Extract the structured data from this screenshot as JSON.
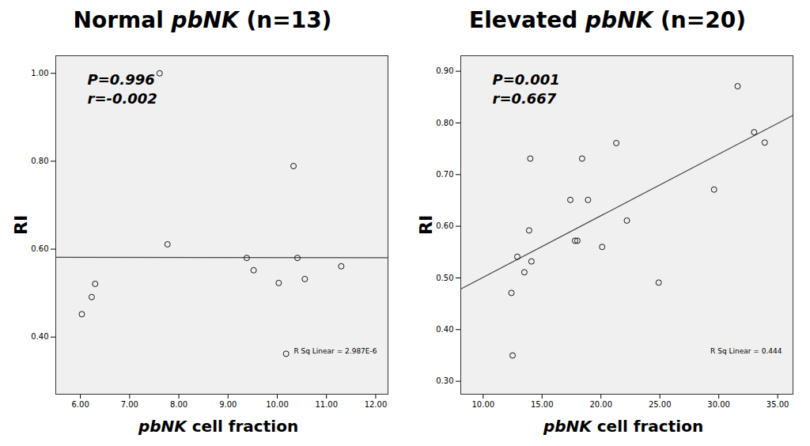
{
  "chart_data": [
    {
      "type": "scatter",
      "title": "Normal pbNK (n=13)",
      "xlabel": "pbNK cell fraction",
      "ylabel": "RI",
      "x": [
        6.03,
        6.23,
        6.3,
        7.61,
        7.77,
        9.38,
        9.52,
        10.33,
        10.41,
        10.03,
        10.18,
        10.56,
        11.3
      ],
      "values": [
        0.452,
        0.491,
        0.521,
        1.0,
        0.611,
        0.58,
        0.552,
        0.789,
        0.58,
        0.523,
        0.362,
        0.532,
        0.561
      ],
      "xlim": [
        5.5,
        12.25
      ],
      "ylim": [
        0.27,
        1.04
      ],
      "xticks": [
        {
          "value": 6,
          "label": "6.00"
        },
        {
          "value": 7,
          "label": "7.00"
        },
        {
          "value": 8,
          "label": "8.00"
        },
        {
          "value": 9,
          "label": "9.00"
        },
        {
          "value": 10,
          "label": "10.00"
        },
        {
          "value": 11,
          "label": "11.00"
        },
        {
          "value": 12,
          "label": "12.00"
        }
      ],
      "yticks": [
        {
          "value": 0.4,
          "label": "0.40"
        },
        {
          "value": 0.6,
          "label": "0.60"
        },
        {
          "value": 0.8,
          "label": "0.80"
        },
        {
          "value": 1.0,
          "label": "1.00"
        }
      ],
      "annotations": [
        "P=0.996",
        "r=-0.002",
        "R Sq Linear = 2.987E-6"
      ],
      "marker": "circle",
      "color": "#000000",
      "line_style": "solid",
      "grid": false
    },
    {
      "type": "scatter",
      "title": "Elevated pbNK (n=20)",
      "xlabel": "pbNK cell fraction",
      "ylabel": "RI",
      "x": [
        12.4,
        12.5,
        12.9,
        13.5,
        13.9,
        14.0,
        14.1,
        17.4,
        17.8,
        18.0,
        18.4,
        18.9,
        20.1,
        21.3,
        22.2,
        24.9,
        29.6,
        31.6,
        33.0,
        33.9
      ],
      "values": [
        0.471,
        0.35,
        0.541,
        0.511,
        0.592,
        0.731,
        0.532,
        0.651,
        0.572,
        0.572,
        0.731,
        0.651,
        0.56,
        0.761,
        0.611,
        0.491,
        0.671,
        0.871,
        0.782,
        0.762
      ],
      "xlim": [
        8.1,
        36.3
      ],
      "ylim": [
        0.275,
        0.93
      ],
      "xticks": [
        {
          "value": 10,
          "label": "10.00"
        },
        {
          "value": 15,
          "label": "15.00"
        },
        {
          "value": 20,
          "label": "20.00"
        },
        {
          "value": 25,
          "label": "25.00"
        },
        {
          "value": 30,
          "label": "30.00"
        },
        {
          "value": 35,
          "label": "35.00"
        }
      ],
      "yticks": [
        {
          "value": 0.3,
          "label": "0.30"
        },
        {
          "value": 0.4,
          "label": "0.40"
        },
        {
          "value": 0.5,
          "label": "0.50"
        },
        {
          "value": 0.6,
          "label": "0.60"
        },
        {
          "value": 0.7,
          "label": "0.70"
        },
        {
          "value": 0.8,
          "label": "0.80"
        },
        {
          "value": 0.9,
          "label": "0.90"
        }
      ],
      "annotations": [
        "P=0.001",
        "r=0.667",
        "R Sq Linear = 0.444"
      ],
      "marker": "circle",
      "color": "#000000",
      "line_style": "solid",
      "grid": false
    }
  ]
}
